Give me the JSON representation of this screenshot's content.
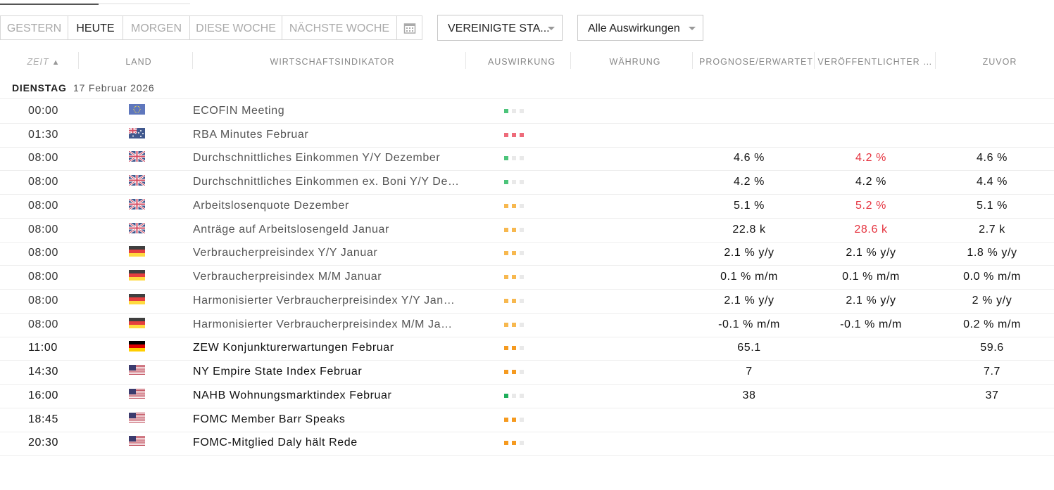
{
  "tabs": [
    {
      "label": "GESTERN",
      "active": false
    },
    {
      "label": "HEUTE",
      "active": true
    },
    {
      "label": "MORGEN",
      "active": false
    },
    {
      "label": "DIESE WOCHE",
      "active": false
    },
    {
      "label": "NÄCHSTE WOCHE",
      "active": false
    }
  ],
  "country_select": "VEREINIGTE STA...",
  "impact_select": "Alle Auswirkungen",
  "columns": [
    "ZEIT",
    "LAND",
    "WIRTSCHAFTSINDIKATOR",
    "AUSWIRKUNG",
    "WÄHRUNG",
    "PROGNOSE/ERWARTET",
    "VERÖFFENTLICHTER …",
    "ZUVOR"
  ],
  "date_group": {
    "day": "DIENSTAG",
    "date": "17 Februar 2026"
  },
  "rows": [
    {
      "time": "00:00",
      "flag": "eu",
      "event": "ECOFIN Meeting",
      "impact": 1,
      "impact_color": "#4cc47a",
      "past": true,
      "forecast": null,
      "actual": null,
      "actual_color": "#111111",
      "previous": null
    },
    {
      "time": "01:30",
      "flag": "au",
      "event": "RBA Minutes Februar",
      "impact": 3,
      "impact_color": "#ee6b7a",
      "past": true,
      "forecast": null,
      "actual": null,
      "actual_color": "#111111",
      "previous": null
    },
    {
      "time": "08:00",
      "flag": "gb",
      "event": "Durchschnittliches Einkommen Y/Y Dezember",
      "impact": 1,
      "impact_color": "#4cc47a",
      "past": true,
      "forecast": "4.6 %",
      "actual": "4.2 %",
      "actual_color": "#e5333f",
      "previous": "4.6 %"
    },
    {
      "time": "08:00",
      "flag": "gb",
      "event": "Durchschnittliches Einkommen ex. Boni Y/Y De…",
      "impact": 1,
      "impact_color": "#4cc47a",
      "past": true,
      "forecast": "4.2 %",
      "actual": "4.2 %",
      "actual_color": "#111111",
      "previous": "4.4 %"
    },
    {
      "time": "08:00",
      "flag": "gb",
      "event": "Arbeitslosenquote Dezember",
      "impact": 2,
      "impact_color": "#f7b84f",
      "past": true,
      "forecast": "5.1 %",
      "actual": "5.2 %",
      "actual_color": "#e5333f",
      "previous": "5.1 %"
    },
    {
      "time": "08:00",
      "flag": "gb",
      "event": "Anträge auf Arbeitslosengeld Januar",
      "impact": 2,
      "impact_color": "#f7b84f",
      "past": true,
      "forecast": "22.8 k",
      "actual": "28.6 k",
      "actual_color": "#e5333f",
      "previous": "2.7 k"
    },
    {
      "time": "08:00",
      "flag": "de",
      "event": "Verbraucherpreisindex Y/Y Januar",
      "impact": 2,
      "impact_color": "#f7b84f",
      "past": true,
      "forecast": "2.1 % y/y",
      "actual": "2.1 % y/y",
      "actual_color": "#111111",
      "previous": "1.8 % y/y"
    },
    {
      "time": "08:00",
      "flag": "de",
      "event": "Verbraucherpreisindex M/M Januar",
      "impact": 2,
      "impact_color": "#f7b84f",
      "past": true,
      "forecast": "0.1 % m/m",
      "actual": "0.1 % m/m",
      "actual_color": "#111111",
      "previous": "0.0 % m/m"
    },
    {
      "time": "08:00",
      "flag": "de",
      "event": "Harmonisierter Verbraucherpreisindex Y/Y Jan…",
      "impact": 2,
      "impact_color": "#f7b84f",
      "past": true,
      "forecast": "2.1 % y/y",
      "actual": "2.1 % y/y",
      "actual_color": "#111111",
      "previous": "2 % y/y"
    },
    {
      "time": "08:00",
      "flag": "de",
      "event": "Harmonisierter Verbraucherpreisindex M/M Ja…",
      "impact": 2,
      "impact_color": "#f7b84f",
      "past": true,
      "forecast": "-0.1 % m/m",
      "actual": "-0.1 % m/m",
      "actual_color": "#111111",
      "previous": "0.2 % m/m"
    },
    {
      "time": "11:00",
      "flag": "de",
      "event": "ZEW Konjunkturerwartungen Februar",
      "impact": 2,
      "impact_color": "#f59a1f",
      "past": false,
      "forecast": "65.1",
      "actual": null,
      "actual_color": "#111111",
      "previous": "59.6"
    },
    {
      "time": "14:30",
      "flag": "us",
      "event": "NY Empire State Index Februar",
      "impact": 2,
      "impact_color": "#f59a1f",
      "past": false,
      "forecast": "7",
      "actual": null,
      "actual_color": "#111111",
      "previous": "7.7"
    },
    {
      "time": "16:00",
      "flag": "us",
      "event": "NAHB Wohnungsmarktindex Februar",
      "impact": 1,
      "impact_color": "#1fae5b",
      "past": false,
      "forecast": "38",
      "actual": null,
      "actual_color": "#111111",
      "previous": "37"
    },
    {
      "time": "18:45",
      "flag": "us",
      "event": "FOMC Member Barr Speaks",
      "impact": 2,
      "impact_color": "#f59a1f",
      "past": false,
      "forecast": null,
      "actual": null,
      "actual_color": "#111111",
      "previous": null
    },
    {
      "time": "20:30",
      "flag": "us",
      "event": "FOMC-Mitglied Daly hält Rede",
      "impact": 2,
      "impact_color": "#f59a1f",
      "past": false,
      "forecast": null,
      "actual": null,
      "actual_color": "#111111",
      "previous": null
    }
  ]
}
